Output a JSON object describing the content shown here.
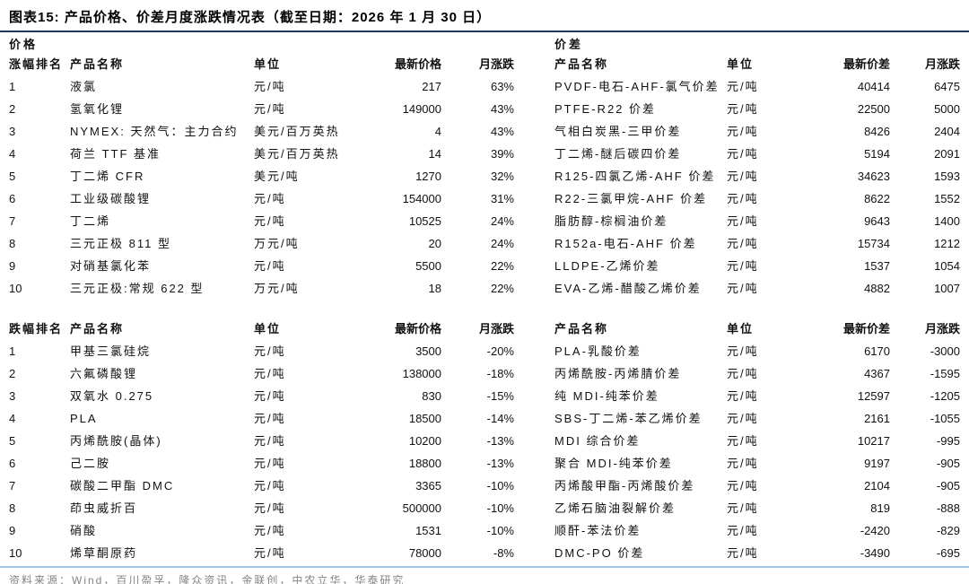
{
  "title": "图表15:  产品价格、价差月度涨跌情况表（截至日期：2026 年 1 月 30 日）",
  "source": "资料来源：Wind，百川盈孚，隆众资讯，金联创，中农立华，华泰研究",
  "colors": {
    "title_rule": "#1f3864",
    "bottom_rule": "#9dc3e6",
    "source_text": "#848484"
  },
  "price_section": {
    "label": "价格",
    "gainers": {
      "headers": {
        "rank": "涨幅排名",
        "name": "产品名称",
        "unit": "单位",
        "value": "最新价格",
        "change": "月涨跌"
      },
      "rows": [
        {
          "rank": "1",
          "name": "液氯",
          "unit": "元/吨",
          "value": "217",
          "change": "63%"
        },
        {
          "rank": "2",
          "name": "氢氧化锂",
          "unit": "元/吨",
          "value": "149000",
          "change": "43%"
        },
        {
          "rank": "3",
          "name": "NYMEX: 天然气：主力合约",
          "unit": "美元/百万英热",
          "value": "4",
          "change": "43%"
        },
        {
          "rank": "4",
          "name": "荷兰 TTF 基准",
          "unit": "美元/百万英热",
          "value": "14",
          "change": "39%"
        },
        {
          "rank": "5",
          "name": "丁二烯 CFR",
          "unit": "美元/吨",
          "value": "1270",
          "change": "32%"
        },
        {
          "rank": "6",
          "name": "工业级碳酸锂",
          "unit": "元/吨",
          "value": "154000",
          "change": "31%"
        },
        {
          "rank": "7",
          "name": "丁二烯",
          "unit": "元/吨",
          "value": "10525",
          "change": "24%"
        },
        {
          "rank": "8",
          "name": "三元正极 811 型",
          "unit": "万元/吨",
          "value": "20",
          "change": "24%"
        },
        {
          "rank": "9",
          "name": "对硝基氯化苯",
          "unit": "元/吨",
          "value": "5500",
          "change": "22%"
        },
        {
          "rank": "10",
          "name": "三元正极:常规 622 型",
          "unit": "万元/吨",
          "value": "18",
          "change": "22%"
        }
      ]
    },
    "losers": {
      "headers": {
        "rank": "跌幅排名",
        "name": "产品名称",
        "unit": "单位",
        "value": "最新价格",
        "change": "月涨跌"
      },
      "rows": [
        {
          "rank": "1",
          "name": "甲基三氯硅烷",
          "unit": "元/吨",
          "value": "3500",
          "change": "-20%"
        },
        {
          "rank": "2",
          "name": "六氟磷酸锂",
          "unit": "元/吨",
          "value": "138000",
          "change": "-18%"
        },
        {
          "rank": "3",
          "name": "双氧水 0.275",
          "unit": "元/吨",
          "value": "830",
          "change": "-15%"
        },
        {
          "rank": "4",
          "name": "PLA",
          "unit": "元/吨",
          "value": "18500",
          "change": "-14%"
        },
        {
          "rank": "5",
          "name": "丙烯酰胺(晶体)",
          "unit": "元/吨",
          "value": "10200",
          "change": "-13%"
        },
        {
          "rank": "6",
          "name": "己二胺",
          "unit": "元/吨",
          "value": "18800",
          "change": "-13%"
        },
        {
          "rank": "7",
          "name": "碳酸二甲酯 DMC",
          "unit": "元/吨",
          "value": "3365",
          "change": "-10%"
        },
        {
          "rank": "8",
          "name": "茚虫威折百",
          "unit": "元/吨",
          "value": "500000",
          "change": "-10%"
        },
        {
          "rank": "9",
          "name": "硝酸",
          "unit": "元/吨",
          "value": "1531",
          "change": "-10%"
        },
        {
          "rank": "10",
          "name": "烯草酮原药",
          "unit": "元/吨",
          "value": "78000",
          "change": "-8%"
        }
      ]
    }
  },
  "spread_section": {
    "label": "价差",
    "gainers": {
      "headers": {
        "name": "产品名称",
        "unit": "单位",
        "value": "最新价差",
        "change": "月涨跌"
      },
      "rows": [
        {
          "name": "PVDF-电石-AHF-氯气价差",
          "unit": "元/吨",
          "value": "40414",
          "change": "6475"
        },
        {
          "name": "PTFE-R22 价差",
          "unit": "元/吨",
          "value": "22500",
          "change": "5000"
        },
        {
          "name": "气相白炭黑-三甲价差",
          "unit": "元/吨",
          "value": "8426",
          "change": "2404"
        },
        {
          "name": "丁二烯-醚后碳四价差",
          "unit": "元/吨",
          "value": "5194",
          "change": "2091"
        },
        {
          "name": "R125-四氯乙烯-AHF 价差",
          "unit": "元/吨",
          "value": "34623",
          "change": "1593"
        },
        {
          "name": "R22-三氯甲烷-AHF 价差",
          "unit": "元/吨",
          "value": "8622",
          "change": "1552"
        },
        {
          "name": "脂肪醇-棕榈油价差",
          "unit": "元/吨",
          "value": "9643",
          "change": "1400"
        },
        {
          "name": "R152a-电石-AHF 价差",
          "unit": "元/吨",
          "value": "15734",
          "change": "1212"
        },
        {
          "name": "LLDPE-乙烯价差",
          "unit": "元/吨",
          "value": "1537",
          "change": "1054"
        },
        {
          "name": "EVA-乙烯-醋酸乙烯价差",
          "unit": "元/吨",
          "value": "4882",
          "change": "1007"
        }
      ]
    },
    "losers": {
      "headers": {
        "name": "产品名称",
        "unit": "单位",
        "value": "最新价差",
        "change": "月涨跌"
      },
      "rows": [
        {
          "name": "PLA-乳酸价差",
          "unit": "元/吨",
          "value": "6170",
          "change": "-3000"
        },
        {
          "name": "丙烯酰胺-丙烯腈价差",
          "unit": "元/吨",
          "value": "4367",
          "change": "-1595"
        },
        {
          "name": "纯 MDI-纯苯价差",
          "unit": "元/吨",
          "value": "12597",
          "change": "-1205"
        },
        {
          "name": "SBS-丁二烯-苯乙烯价差",
          "unit": "元/吨",
          "value": "2161",
          "change": "-1055"
        },
        {
          "name": "MDI 综合价差",
          "unit": "元/吨",
          "value": "10217",
          "change": "-995"
        },
        {
          "name": "聚合 MDI-纯苯价差",
          "unit": "元/吨",
          "value": "9197",
          "change": "-905"
        },
        {
          "name": "丙烯酸甲酯-丙烯酸价差",
          "unit": "元/吨",
          "value": "2104",
          "change": "-905"
        },
        {
          "name": "乙烯石脑油裂解价差",
          "unit": "元/吨",
          "value": "819",
          "change": "-888"
        },
        {
          "name": "顺酐-苯法价差",
          "unit": "元/吨",
          "value": "-2420",
          "change": "-829"
        },
        {
          "name": "DMC-PO 价差",
          "unit": "元/吨",
          "value": "-3490",
          "change": "-695"
        }
      ]
    }
  }
}
